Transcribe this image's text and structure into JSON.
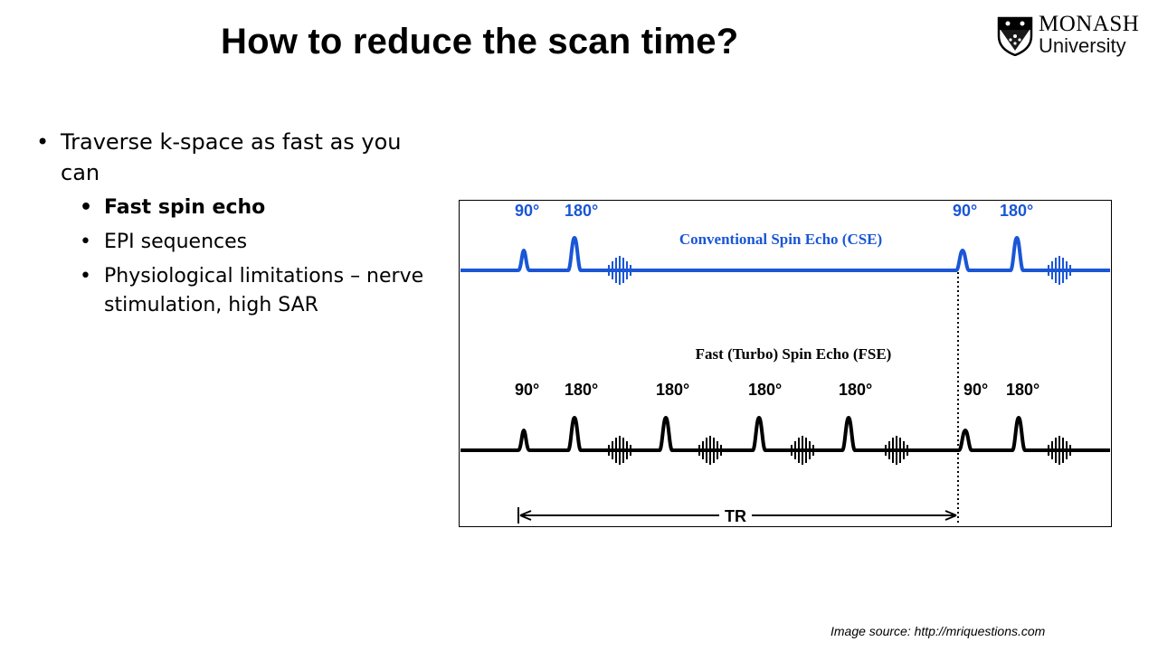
{
  "slide": {
    "title": "How to reduce the scan time?"
  },
  "logo": {
    "name": "MONASH",
    "sub": "University"
  },
  "bullets": {
    "main": "Traverse k-space as fast as you can",
    "subs": [
      "Fast spin echo",
      "EPI sequences",
      "Physiological limitations – nerve stimulation, high SAR"
    ]
  },
  "figure": {
    "cse": {
      "title": "Conventional Spin Echo (CSE)",
      "labels": [
        "90°",
        "180°",
        "90°",
        "180°"
      ],
      "color": "#1a56d6"
    },
    "fse": {
      "title": "Fast (Turbo) Spin Echo (FSE)",
      "labels": [
        "90°",
        "180°",
        "180°",
        "180°",
        "180°",
        "90°",
        "180°"
      ],
      "color": "#000000"
    },
    "tr_label": "TR"
  },
  "source": "Image source:  http://mriquestions.com"
}
